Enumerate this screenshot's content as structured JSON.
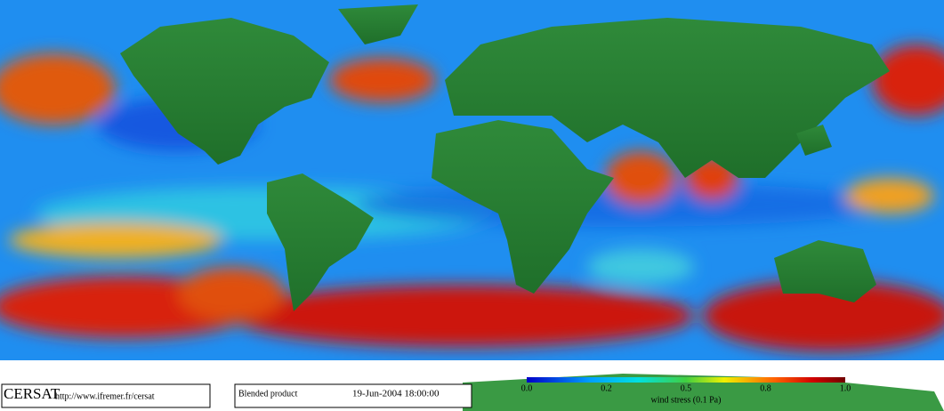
{
  "logo": "CERSAT",
  "url": "http://www.ifremer.fr/cersat",
  "product": "Blended product",
  "timestamp": "19-Jun-2004 18:00:00",
  "colorbar": {
    "ticks": [
      "0.0",
      "0.2",
      "0.5",
      "0.8",
      "1.0"
    ],
    "label": "wind stress (0.1 Pa)"
  }
}
